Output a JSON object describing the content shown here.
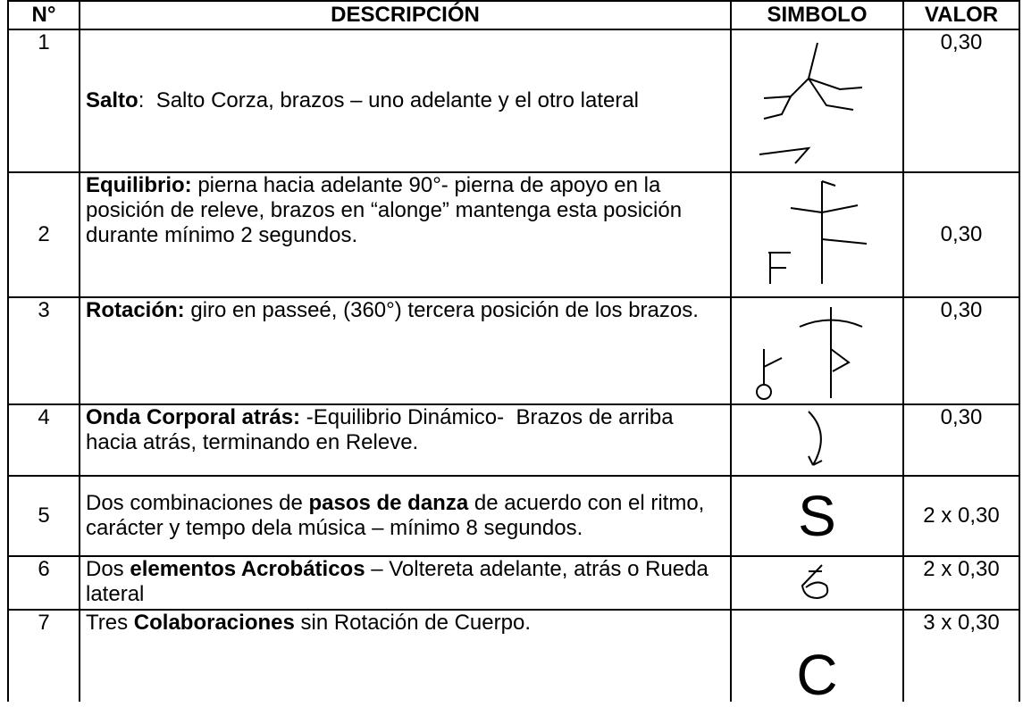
{
  "table": {
    "header": [
      "N°",
      "DESCRIPCIÓN",
      "SIMBOLO",
      "VALOR"
    ],
    "rows": [
      {
        "number": "1",
        "description": [
          {
            "text": "Salto",
            "bold": true
          },
          {
            "text": ":  Salto Corza, brazos – uno adelante y el otro lateral",
            "bold": false
          }
        ],
        "value": "0,30"
      },
      {
        "number": "2",
        "description": [
          {
            "text": "Equilibrio:",
            "bold": true
          },
          {
            "text": " pierna hacia adelante 90°- pierna de apoyo en la posición de releve, brazos en “alonge” mantenga esta posición durante mínimo 2 segundos.",
            "bold": false
          }
        ],
        "value": "0,30"
      },
      {
        "number": "3",
        "description": [
          {
            "text": "Rotación:",
            "bold": true
          },
          {
            "text": " giro en passeé, (360°) tercera posición de los brazos.",
            "bold": false
          }
        ],
        "value": "0,30"
      },
      {
        "number": "4",
        "description": [
          {
            "text": "Onda Corporal atrás:",
            "bold": true
          },
          {
            "text": " -Equilibrio Dinámico-  Brazos de arriba hacia atrás, terminando en Releve.",
            "bold": false
          }
        ],
        "value": "0,30"
      },
      {
        "number": "5",
        "description": [
          {
            "text": "Dos combinaciones de ",
            "bold": false
          },
          {
            "text": "pasos de danza",
            "bold": true
          },
          {
            "text": " de acuerdo con el ritmo, carácter y tempo dela música – mínimo 8 segundos.",
            "bold": false
          }
        ],
        "symbol": "S",
        "value": "2 x 0,30"
      },
      {
        "number": "6",
        "description": [
          {
            "text": "Dos ",
            "bold": false
          },
          {
            "text": "elementos Acrobáticos",
            "bold": true
          },
          {
            "text": " – Voltereta adelante, atrás o Rueda lateral",
            "bold": false
          }
        ],
        "value": "2 x 0,30"
      },
      {
        "number": "7",
        "description": [
          {
            "text": "Tres ",
            "bold": false
          },
          {
            "text": "Colaboraciones",
            "bold": true
          },
          {
            "text": " sin Rotación de Cuerpo.",
            "bold": false
          }
        ],
        "symbol": "C",
        "value": "3 x 0,30"
      }
    ]
  }
}
